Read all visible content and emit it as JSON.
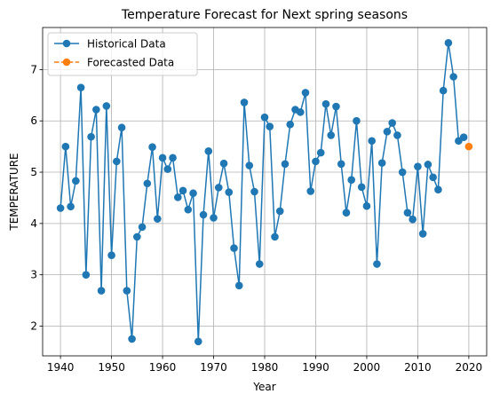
{
  "chart_data": {
    "type": "line",
    "title": "Temperature Forecast for Next spring seasons",
    "xlabel": "Year",
    "ylabel": "TEMPERATURE",
    "xlim": [
      1936.5,
      2023.5
    ],
    "ylim": [
      1.42,
      7.82
    ],
    "xticks": [
      1940,
      1950,
      1960,
      1970,
      1980,
      1990,
      2000,
      2010,
      2020
    ],
    "yticks": [
      2,
      3,
      4,
      5,
      6,
      7
    ],
    "grid": true,
    "legend_position": "top-left",
    "series": [
      {
        "name": "Historical Data",
        "color": "#1f77b4",
        "linestyle": "solid",
        "marker": "circle",
        "x": [
          1940,
          1941,
          1942,
          1943,
          1944,
          1945,
          1946,
          1947,
          1948,
          1949,
          1950,
          1951,
          1952,
          1953,
          1954,
          1955,
          1956,
          1957,
          1958,
          1959,
          1960,
          1961,
          1962,
          1963,
          1964,
          1965,
          1966,
          1967,
          1968,
          1969,
          1970,
          1971,
          1972,
          1973,
          1974,
          1975,
          1976,
          1977,
          1978,
          1979,
          1980,
          1981,
          1982,
          1983,
          1984,
          1985,
          1986,
          1987,
          1988,
          1989,
          1990,
          1991,
          1992,
          1993,
          1994,
          1995,
          1996,
          1997,
          1998,
          1999,
          2000,
          2001,
          2002,
          2003,
          2004,
          2005,
          2006,
          2007,
          2008,
          2009,
          2010,
          2011,
          2012,
          2013,
          2014,
          2015,
          2016,
          2017,
          2018,
          2019
        ],
        "y": [
          4.3,
          5.5,
          4.33,
          4.83,
          6.65,
          3.0,
          5.69,
          6.22,
          2.69,
          6.29,
          3.38,
          5.21,
          5.87,
          2.69,
          1.75,
          3.74,
          3.93,
          4.78,
          5.49,
          4.09,
          5.28,
          5.06,
          5.28,
          4.51,
          4.64,
          4.27,
          4.59,
          1.7,
          4.17,
          5.41,
          4.11,
          4.7,
          5.17,
          4.61,
          3.52,
          2.79,
          6.36,
          5.13,
          4.62,
          3.21,
          6.07,
          5.89,
          3.74,
          4.24,
          5.16,
          5.93,
          6.22,
          6.17,
          6.55,
          4.63,
          5.21,
          5.38,
          6.33,
          5.72,
          6.28,
          5.16,
          4.21,
          4.85,
          6.0,
          4.71,
          4.34,
          5.61,
          3.21,
          5.18,
          5.79,
          5.96,
          5.72,
          5.0,
          4.21,
          4.08,
          5.11,
          3.8,
          5.15,
          4.9,
          4.66,
          6.59,
          7.52,
          6.86,
          5.61,
          5.68
        ]
      },
      {
        "name": "Forecasted Data",
        "color": "#ff7f0e",
        "linestyle": "dashed",
        "marker": "circle",
        "x": [
          2020
        ],
        "y": [
          5.5
        ]
      }
    ]
  }
}
